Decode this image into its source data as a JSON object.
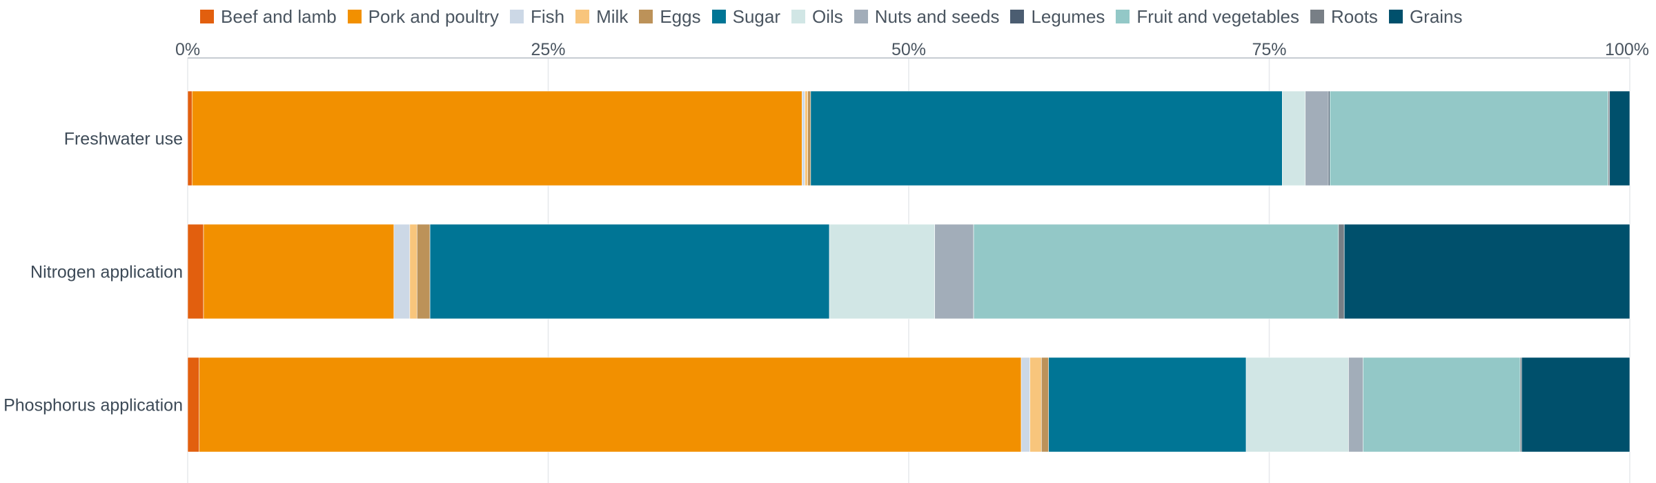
{
  "chart_data": {
    "type": "bar",
    "orientation": "horizontal",
    "stacked": true,
    "normalized": true,
    "categories": [
      "Freshwater use",
      "Nitrogen application",
      "Phosphorus application"
    ],
    "xlim": [
      0,
      100
    ],
    "xticks": [
      {
        "value": 0,
        "label": "0%"
      },
      {
        "value": 25,
        "label": "25%"
      },
      {
        "value": 50,
        "label": "50%"
      },
      {
        "value": 75,
        "label": "75%"
      },
      {
        "value": 100,
        "label": "100%"
      }
    ],
    "grid": true,
    "legend_position": "top",
    "series": [
      {
        "name": "Beef and lamb",
        "color": "#e25f0e",
        "values": [
          0.3,
          1.1,
          0.8
        ]
      },
      {
        "name": "Pork and poultry",
        "color": "#f29000",
        "values": [
          42.3,
          13.2,
          57.0
        ]
      },
      {
        "name": "Fish",
        "color": "#ccd8e6",
        "values": [
          0.2,
          1.1,
          0.6
        ]
      },
      {
        "name": "Milk",
        "color": "#f8c57c",
        "values": [
          0.2,
          0.5,
          0.8
        ]
      },
      {
        "name": "Eggs",
        "color": "#bc9259",
        "values": [
          0.2,
          0.9,
          0.5
        ]
      },
      {
        "name": "Sugar",
        "color": "#007595",
        "values": [
          32.7,
          27.7,
          13.7
        ]
      },
      {
        "name": "Oils",
        "color": "#d1e6e5",
        "values": [
          1.6,
          7.3,
          7.1
        ]
      },
      {
        "name": "Nuts and seeds",
        "color": "#a2adb9",
        "values": [
          1.6,
          2.7,
          1.0
        ]
      },
      {
        "name": "Legumes",
        "color": "#4b5d71",
        "values": [
          0.1,
          0.0,
          0.0
        ]
      },
      {
        "name": "Fruit and vegetables",
        "color": "#93c8c7",
        "values": [
          19.3,
          25.3,
          10.9
        ]
      },
      {
        "name": "Roots",
        "color": "#787f86",
        "values": [
          0.1,
          0.4,
          0.1
        ]
      },
      {
        "name": "Grains",
        "color": "#00506c",
        "values": [
          1.4,
          19.8,
          7.5
        ]
      }
    ]
  }
}
